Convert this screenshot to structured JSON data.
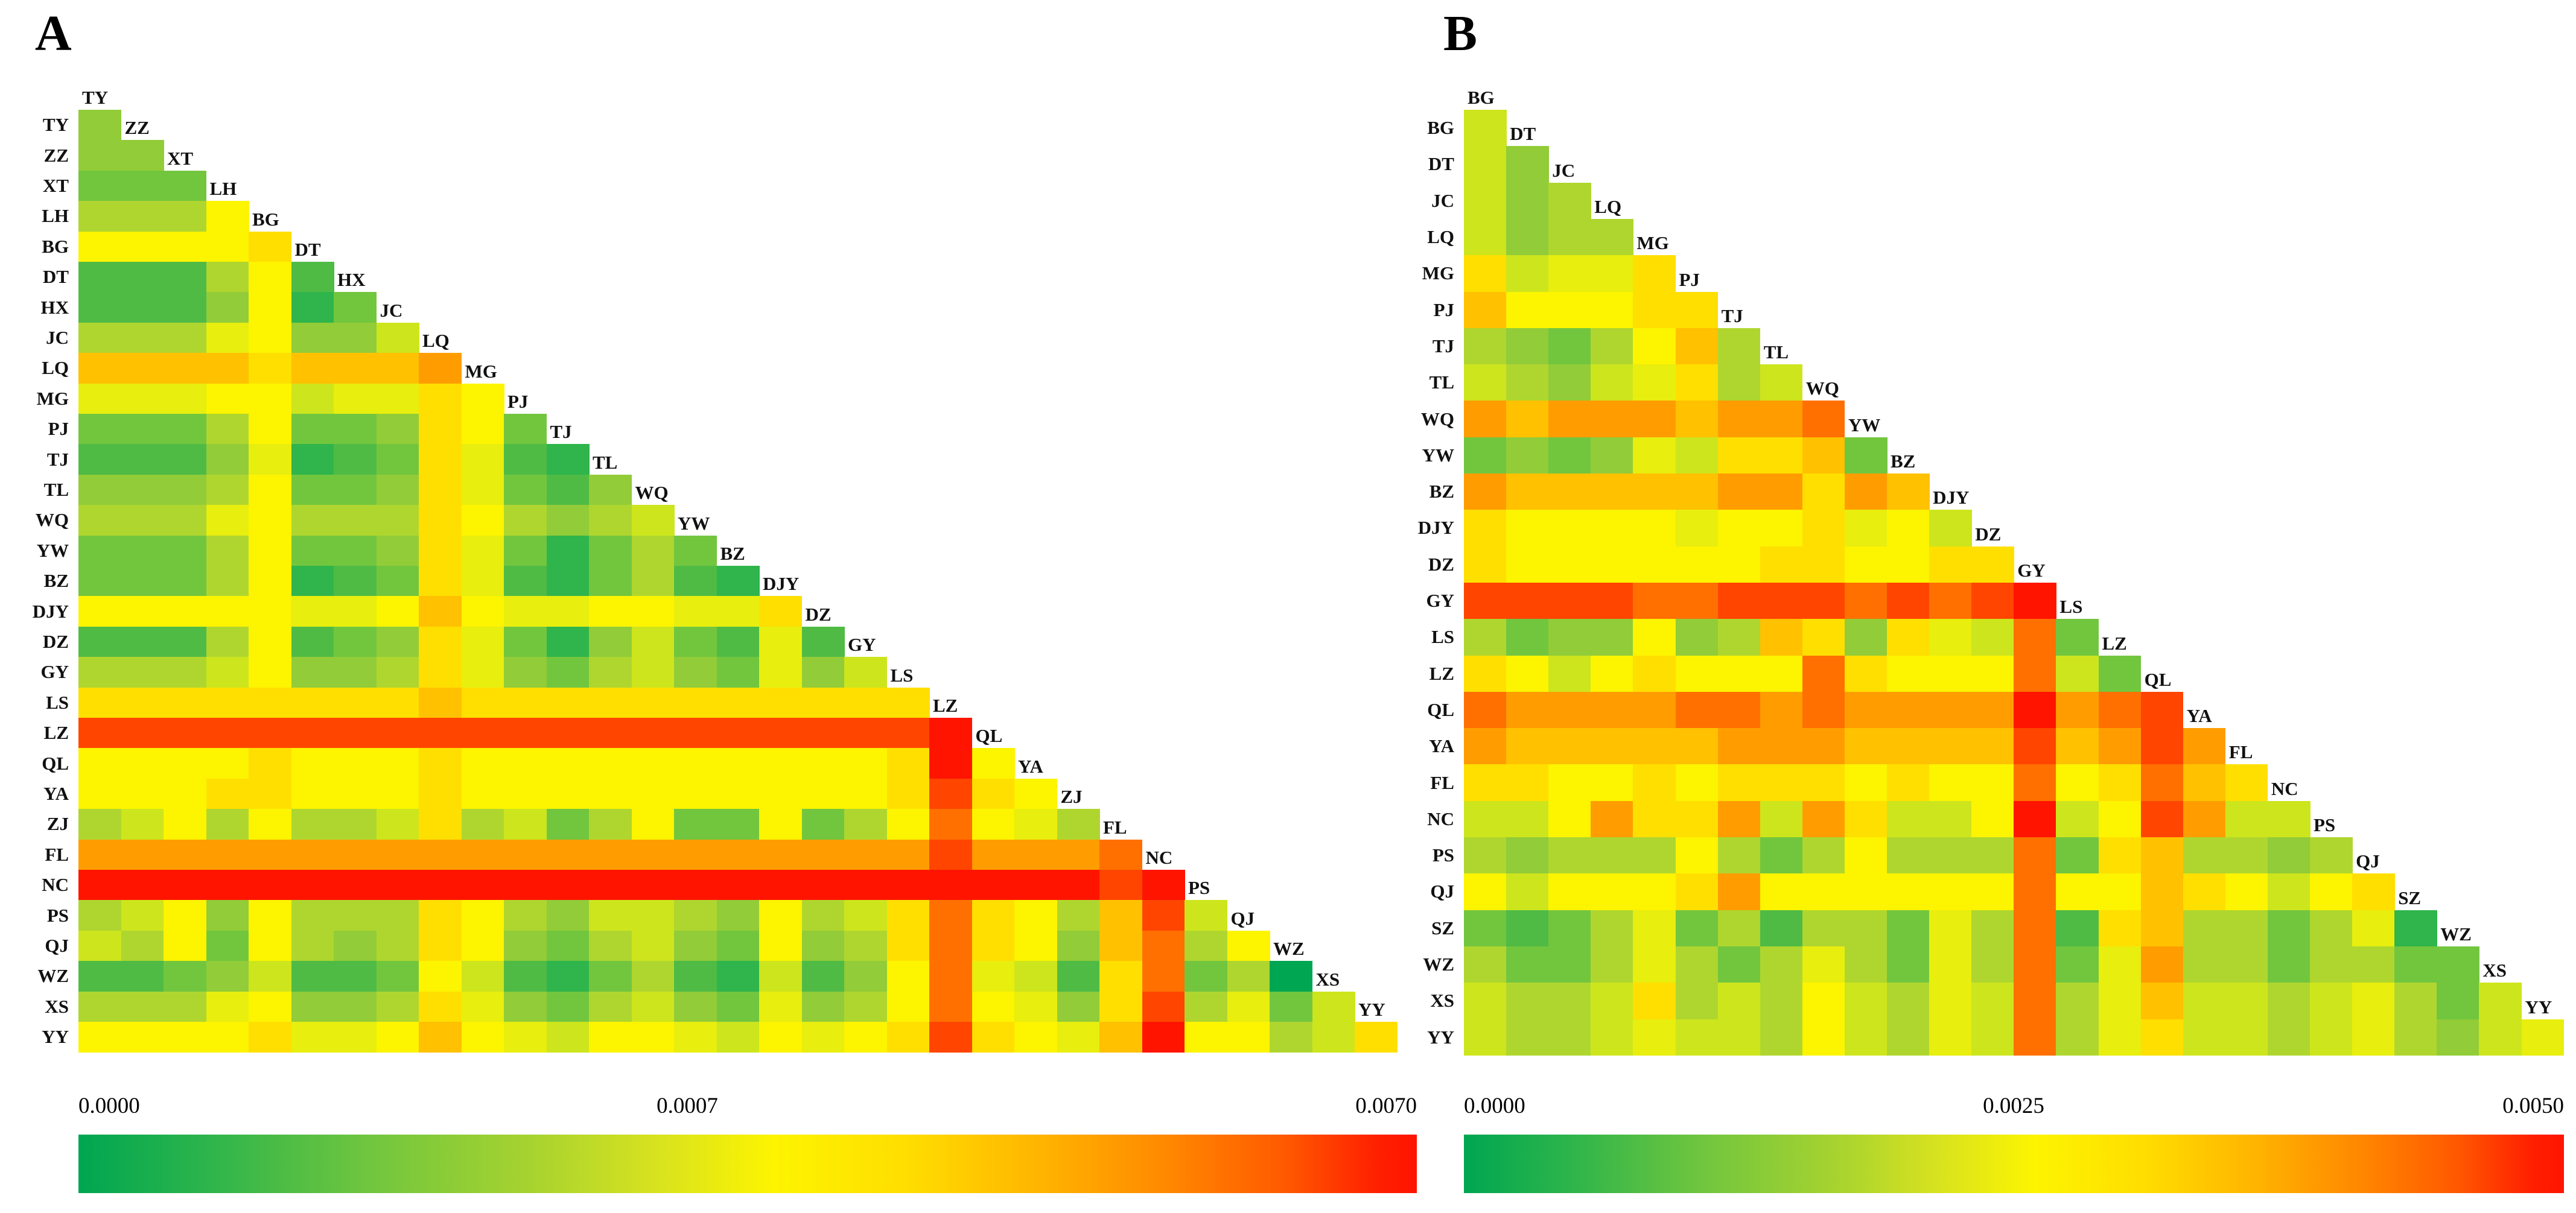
{
  "figure": {
    "background": "#ffffff",
    "palette": [
      "#00A651",
      "#2FB54B",
      "#4FBB45",
      "#72C63E",
      "#92CC38",
      "#AFD62F",
      "#CDE51D",
      "#E8EE0E",
      "#FDF400",
      "#FFDF00",
      "#FFC100",
      "#FF9D00",
      "#FF7000",
      "#FF4500",
      "#FF1400"
    ],
    "colorbar_stops": [
      "#00A651 0%",
      "#2FB54B 10%",
      "#72C63E 22%",
      "#A8D32F 34%",
      "#D7E21F 43%",
      "#FDF400 52%",
      "#FFDD00 62%",
      "#FFB400 72%",
      "#FF8A00 81%",
      "#FF5A00 90%",
      "#FF2000 97%",
      "#FF1400 100%"
    ]
  },
  "chart_data": [
    {
      "type": "heatmap",
      "panel_label": "A",
      "shape": "lower-triangular-with-diagonal",
      "populations": [
        "TY",
        "ZZ",
        "XT",
        "LH",
        "BG",
        "DT",
        "HX",
        "JC",
        "LQ",
        "MG",
        "PJ",
        "TJ",
        "TL",
        "WQ",
        "YW",
        "BZ",
        "DJY",
        "DZ",
        "GY",
        "LS",
        "LZ",
        "QL",
        "YA",
        "ZJ",
        "FL",
        "NC",
        "PS",
        "QJ",
        "WZ",
        "XS",
        "YY"
      ],
      "legend": {
        "min": "0.0000",
        "mid": "0.0007",
        "max": "0.0070"
      },
      "value_range": [
        0.0,
        0.007
      ],
      "matrix_palette_idx": [
        [
          4
        ],
        [
          4,
          4
        ],
        [
          3,
          3,
          3
        ],
        [
          5,
          5,
          5,
          8
        ],
        [
          8,
          8,
          8,
          8,
          9
        ],
        [
          2,
          2,
          2,
          5,
          8,
          2
        ],
        [
          2,
          2,
          2,
          4,
          8,
          1,
          3
        ],
        [
          5,
          5,
          5,
          7,
          8,
          4,
          4,
          6
        ],
        [
          10,
          10,
          10,
          10,
          9,
          10,
          10,
          10,
          11
        ],
        [
          7,
          7,
          7,
          8,
          8,
          6,
          7,
          7,
          9,
          8
        ],
        [
          3,
          3,
          3,
          5,
          8,
          3,
          3,
          4,
          9,
          8,
          3
        ],
        [
          2,
          2,
          2,
          4,
          7,
          1,
          2,
          3,
          9,
          7,
          2,
          1
        ],
        [
          4,
          4,
          4,
          5,
          8,
          3,
          3,
          4,
          9,
          7,
          3,
          2,
          4
        ],
        [
          5,
          5,
          5,
          7,
          8,
          5,
          5,
          5,
          9,
          8,
          5,
          4,
          5,
          6
        ],
        [
          3,
          3,
          3,
          5,
          8,
          3,
          3,
          4,
          9,
          7,
          3,
          1,
          3,
          5,
          3
        ],
        [
          3,
          3,
          3,
          5,
          8,
          1,
          2,
          3,
          9,
          7,
          2,
          1,
          3,
          5,
          2,
          1
        ],
        [
          8,
          8,
          8,
          8,
          8,
          7,
          7,
          8,
          10,
          8,
          7,
          7,
          8,
          8,
          7,
          7,
          9
        ],
        [
          2,
          2,
          2,
          5,
          8,
          2,
          3,
          4,
          9,
          7,
          3,
          1,
          4,
          6,
          3,
          2,
          7,
          2
        ],
        [
          5,
          5,
          5,
          6,
          8,
          4,
          4,
          5,
          9,
          7,
          4,
          3,
          5,
          6,
          4,
          3,
          7,
          4,
          6
        ],
        [
          9,
          9,
          9,
          9,
          9,
          9,
          9,
          9,
          10,
          9,
          9,
          9,
          9,
          9,
          9,
          9,
          9,
          9,
          9,
          9
        ],
        [
          13,
          13,
          13,
          13,
          13,
          13,
          13,
          13,
          13,
          13,
          13,
          13,
          13,
          13,
          13,
          13,
          13,
          13,
          13,
          13,
          14
        ],
        [
          8,
          8,
          8,
          8,
          9,
          8,
          8,
          8,
          9,
          8,
          8,
          8,
          8,
          8,
          8,
          8,
          8,
          8,
          8,
          9,
          14,
          8
        ],
        [
          8,
          8,
          8,
          9,
          9,
          8,
          8,
          8,
          9,
          8,
          8,
          8,
          8,
          8,
          8,
          8,
          8,
          8,
          8,
          9,
          13,
          9,
          8
        ],
        [
          5,
          6,
          8,
          5,
          8,
          5,
          5,
          6,
          9,
          5,
          6,
          3,
          5,
          8,
          3,
          3,
          8,
          3,
          5,
          8,
          12,
          8,
          7,
          5
        ],
        [
          11,
          11,
          11,
          11,
          11,
          11,
          11,
          11,
          11,
          11,
          11,
          11,
          11,
          11,
          11,
          11,
          11,
          11,
          11,
          11,
          13,
          11,
          11,
          11,
          12
        ],
        [
          14,
          14,
          14,
          14,
          14,
          14,
          14,
          14,
          14,
          14,
          14,
          14,
          14,
          14,
          14,
          14,
          14,
          14,
          14,
          14,
          14,
          14,
          14,
          14,
          13,
          14
        ],
        [
          5,
          6,
          8,
          4,
          8,
          5,
          5,
          5,
          9,
          8,
          5,
          4,
          6,
          6,
          5,
          4,
          8,
          5,
          6,
          9,
          12,
          9,
          8,
          5,
          10,
          13,
          6
        ],
        [
          6,
          5,
          8,
          3,
          8,
          5,
          4,
          5,
          9,
          8,
          4,
          3,
          5,
          6,
          4,
          3,
          8,
          4,
          5,
          9,
          12,
          9,
          8,
          4,
          10,
          12,
          5,
          8
        ],
        [
          2,
          2,
          3,
          4,
          6,
          2,
          2,
          3,
          8,
          6,
          2,
          1,
          3,
          5,
          2,
          1,
          6,
          2,
          4,
          8,
          12,
          7,
          6,
          2,
          9,
          12,
          3,
          5,
          0
        ],
        [
          5,
          5,
          5,
          7,
          8,
          4,
          4,
          5,
          9,
          7,
          4,
          3,
          5,
          6,
          4,
          3,
          7,
          4,
          5,
          8,
          12,
          8,
          7,
          4,
          9,
          13,
          5,
          7,
          3,
          6
        ],
        [
          8,
          8,
          8,
          8,
          9,
          7,
          7,
          8,
          10,
          8,
          7,
          6,
          8,
          8,
          7,
          6,
          8,
          7,
          8,
          9,
          13,
          9,
          8,
          7,
          10,
          14,
          8,
          8,
          5,
          6,
          9
        ]
      ]
    },
    {
      "type": "heatmap",
      "panel_label": "B",
      "shape": "lower-triangular-with-diagonal",
      "populations": [
        "BG",
        "DT",
        "JC",
        "LQ",
        "MG",
        "PJ",
        "TJ",
        "TL",
        "WQ",
        "YW",
        "BZ",
        "DJY",
        "DZ",
        "GY",
        "LS",
        "LZ",
        "QL",
        "YA",
        "FL",
        "NC",
        "PS",
        "QJ",
        "SZ",
        "WZ",
        "XS",
        "YY"
      ],
      "legend": {
        "min": "0.0000",
        "mid": "0.0025",
        "max": "0.0050"
      },
      "value_range": [
        0.0,
        0.005
      ],
      "matrix_palette_idx": [
        [
          6
        ],
        [
          6,
          4
        ],
        [
          6,
          4,
          5
        ],
        [
          6,
          4,
          5,
          5
        ],
        [
          9,
          6,
          7,
          7,
          9
        ],
        [
          10,
          8,
          8,
          8,
          9,
          9
        ],
        [
          5,
          4,
          3,
          5,
          8,
          10,
          5
        ],
        [
          6,
          5,
          4,
          6,
          7,
          9,
          5,
          6
        ],
        [
          11,
          10,
          11,
          11,
          11,
          10,
          11,
          11,
          12
        ],
        [
          3,
          4,
          3,
          4,
          7,
          6,
          9,
          9,
          10,
          3
        ],
        [
          11,
          10,
          10,
          10,
          10,
          10,
          11,
          11,
          9,
          11,
          10
        ],
        [
          9,
          8,
          8,
          8,
          8,
          7,
          8,
          8,
          9,
          7,
          8,
          6
        ],
        [
          9,
          8,
          8,
          8,
          8,
          8,
          8,
          9,
          9,
          8,
          8,
          9,
          9
        ],
        [
          13,
          13,
          13,
          13,
          12,
          12,
          13,
          13,
          13,
          12,
          13,
          12,
          13,
          14
        ],
        [
          5,
          3,
          4,
          4,
          8,
          4,
          5,
          10,
          9,
          4,
          9,
          7,
          6,
          12,
          3
        ],
        [
          9,
          8,
          6,
          8,
          9,
          8,
          8,
          8,
          12,
          9,
          8,
          8,
          8,
          12,
          6,
          3
        ],
        [
          12,
          11,
          11,
          11,
          11,
          12,
          12,
          11,
          12,
          11,
          11,
          11,
          11,
          14,
          11,
          12,
          13
        ],
        [
          11,
          10,
          10,
          10,
          10,
          10,
          11,
          11,
          11,
          10,
          10,
          10,
          10,
          13,
          10,
          11,
          13,
          11
        ],
        [
          9,
          9,
          8,
          8,
          9,
          8,
          9,
          9,
          9,
          8,
          9,
          8,
          8,
          12,
          8,
          9,
          12,
          10,
          9
        ],
        [
          6,
          6,
          8,
          11,
          9,
          9,
          11,
          6,
          11,
          9,
          6,
          6,
          8,
          14,
          6,
          8,
          13,
          11,
          6,
          6
        ],
        [
          5,
          4,
          5,
          5,
          5,
          8,
          5,
          3,
          5,
          8,
          5,
          5,
          5,
          12,
          3,
          9,
          10,
          5,
          5,
          4,
          5
        ],
        [
          8,
          6,
          8,
          8,
          8,
          9,
          11,
          8,
          8,
          8,
          8,
          8,
          8,
          12,
          8,
          8,
          10,
          9,
          8,
          6,
          8,
          9
        ],
        [
          3,
          2,
          3,
          5,
          7,
          3,
          5,
          2,
          5,
          5,
          3,
          7,
          5,
          12,
          2,
          9,
          10,
          5,
          5,
          3,
          5,
          7,
          1
        ],
        [
          5,
          3,
          3,
          5,
          7,
          5,
          3,
          5,
          7,
          5,
          3,
          7,
          5,
          12,
          3,
          7,
          11,
          5,
          5,
          3,
          5,
          5,
          3,
          3
        ],
        [
          6,
          5,
          5,
          6,
          9,
          5,
          6,
          5,
          8,
          6,
          5,
          7,
          6,
          12,
          5,
          7,
          10,
          6,
          6,
          5,
          6,
          7,
          5,
          3,
          6
        ],
        [
          6,
          5,
          5,
          6,
          7,
          6,
          6,
          5,
          8,
          6,
          5,
          7,
          6,
          12,
          5,
          7,
          9,
          6,
          6,
          5,
          6,
          7,
          5,
          4,
          6,
          7
        ]
      ]
    }
  ]
}
